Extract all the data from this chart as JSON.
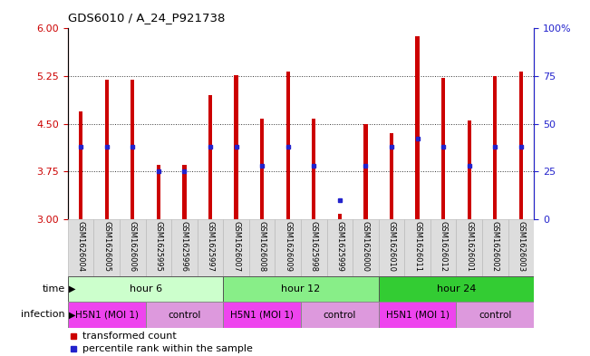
{
  "title": "GDS6010 / A_24_P921738",
  "samples": [
    "GSM1626004",
    "GSM1626005",
    "GSM1626006",
    "GSM1625995",
    "GSM1625996",
    "GSM1625997",
    "GSM1626007",
    "GSM1626008",
    "GSM1626009",
    "GSM1625998",
    "GSM1625999",
    "GSM1626000",
    "GSM1626010",
    "GSM1626011",
    "GSM1626012",
    "GSM1626001",
    "GSM1626002",
    "GSM1626003"
  ],
  "bar_values": [
    4.7,
    5.2,
    5.2,
    3.85,
    3.85,
    4.95,
    5.27,
    4.58,
    5.32,
    4.58,
    3.08,
    4.5,
    4.35,
    5.88,
    5.22,
    4.55,
    5.25,
    5.32
  ],
  "blue_percentiles": [
    38,
    38,
    38,
    25,
    25,
    38,
    38,
    28,
    38,
    28,
    10,
    28,
    38,
    42,
    38,
    28,
    38,
    38
  ],
  "ylim_left": [
    3.0,
    6.0
  ],
  "ylim_right": [
    0,
    100
  ],
  "yticks_left": [
    3.0,
    3.75,
    4.5,
    5.25,
    6.0
  ],
  "yticks_right": [
    0,
    25,
    50,
    75,
    100
  ],
  "bar_color": "#cc0000",
  "dot_color": "#2222cc",
  "bar_bottom": 3.0,
  "bar_width": 0.15,
  "groups": [
    {
      "label": "hour 6",
      "start": 0,
      "end": 6,
      "color": "#ccffcc"
    },
    {
      "label": "hour 12",
      "start": 6,
      "end": 12,
      "color": "#88ee88"
    },
    {
      "label": "hour 24",
      "start": 12,
      "end": 18,
      "color": "#33cc33"
    }
  ],
  "infections": [
    {
      "label": "H5N1 (MOI 1)",
      "start": 0,
      "end": 3,
      "color": "#ee44ee"
    },
    {
      "label": "control",
      "start": 3,
      "end": 6,
      "color": "#dd99dd"
    },
    {
      "label": "H5N1 (MOI 1)",
      "start": 6,
      "end": 9,
      "color": "#ee44ee"
    },
    {
      "label": "control",
      "start": 9,
      "end": 12,
      "color": "#dd99dd"
    },
    {
      "label": "H5N1 (MOI 1)",
      "start": 12,
      "end": 15,
      "color": "#ee44ee"
    },
    {
      "label": "control",
      "start": 15,
      "end": 18,
      "color": "#dd99dd"
    }
  ],
  "left_axis_color": "#cc0000",
  "right_axis_color": "#2222cc",
  "grid_color": "#333333",
  "grid_yticks": [
    3.75,
    4.5,
    5.25
  ],
  "fig_width": 6.51,
  "fig_height": 3.93,
  "dpi": 100
}
